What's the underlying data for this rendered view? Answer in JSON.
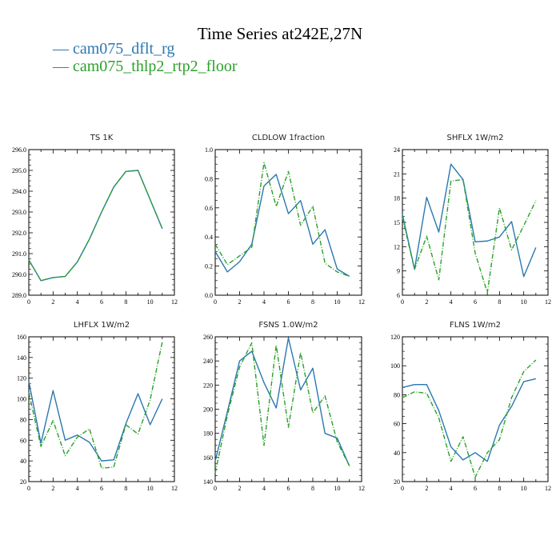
{
  "title": "Time Series at242E,27N",
  "legend": [
    {
      "label": "cam075_dflt_rg",
      "color": "#2a78b0"
    },
    {
      "label": "cam075_thlp2_rtp2_floor",
      "color": "#2ca02c"
    }
  ],
  "chart_data": [
    {
      "type": "line",
      "title": "TS   1K",
      "x": [
        0,
        1,
        2,
        3,
        4,
        5,
        6,
        7,
        8,
        9,
        10,
        11
      ],
      "xlim": [
        0,
        12
      ],
      "xticks": [
        "0",
        "2",
        "4",
        "6",
        "8",
        "10",
        "12"
      ],
      "ylim": [
        289,
        296
      ],
      "yticks": [
        "289.0",
        "290.0",
        "291.0",
        "292.0",
        "293.0",
        "294.0",
        "295.0",
        "296.0"
      ],
      "series": [
        {
          "name": "cam075_dflt_rg",
          "values": [
            290.7,
            289.7,
            289.85,
            289.9,
            290.6,
            291.7,
            293.0,
            294.2,
            294.95,
            295.0,
            293.6,
            292.2
          ]
        },
        {
          "name": "cam075_thlp2_rtp2_floor",
          "values": [
            290.7,
            289.7,
            289.85,
            289.9,
            290.6,
            291.7,
            293.0,
            294.2,
            294.95,
            295.0,
            293.6,
            292.2
          ]
        }
      ]
    },
    {
      "type": "line",
      "title": "CLDLOW   1fraction",
      "x": [
        0,
        1,
        2,
        3,
        4,
        5,
        6,
        7,
        8,
        9,
        10,
        11
      ],
      "xlim": [
        0,
        12
      ],
      "xticks": [
        "0",
        "2",
        "4",
        "6",
        "8",
        "10",
        "12"
      ],
      "ylim": [
        0,
        1
      ],
      "yticks": [
        "0.0",
        "0.2",
        "0.4",
        "0.6",
        "0.8",
        "1.0"
      ],
      "series": [
        {
          "name": "cam075_dflt_rg",
          "values": [
            0.3,
            0.16,
            0.23,
            0.35,
            0.75,
            0.83,
            0.56,
            0.65,
            0.35,
            0.45,
            0.18,
            0.13
          ]
        },
        {
          "name": "cam075_thlp2_rtp2_floor",
          "values": [
            0.35,
            0.21,
            0.27,
            0.33,
            0.91,
            0.61,
            0.85,
            0.48,
            0.61,
            0.22,
            0.16,
            0.13
          ]
        }
      ]
    },
    {
      "type": "line",
      "title": "SHFLX   1W/m2",
      "x": [
        0,
        1,
        2,
        3,
        4,
        5,
        6,
        7,
        8,
        9,
        10,
        11
      ],
      "xlim": [
        0,
        12
      ],
      "xticks": [
        "0",
        "2",
        "4",
        "6",
        "8",
        "10",
        "12"
      ],
      "ylim": [
        6,
        24
      ],
      "yticks": [
        "6",
        "9",
        "12",
        "15",
        "18",
        "21",
        "24"
      ],
      "series": [
        {
          "name": "cam075_dflt_rg",
          "values": [
            16.0,
            9.2,
            18.1,
            13.8,
            22.2,
            20.3,
            12.6,
            12.7,
            13.2,
            15.1,
            8.3,
            11.9
          ]
        },
        {
          "name": "cam075_thlp2_rtp2_floor",
          "values": [
            15.6,
            9.2,
            13.3,
            7.9,
            20.1,
            20.3,
            11.2,
            6.3,
            16.8,
            11.6,
            14.6,
            17.7
          ]
        }
      ]
    },
    {
      "type": "line",
      "title": "LHFLX   1W/m2",
      "x": [
        0,
        1,
        2,
        3,
        4,
        5,
        6,
        7,
        8,
        9,
        10,
        11
      ],
      "xlim": [
        0,
        12
      ],
      "xticks": [
        "0",
        "2",
        "4",
        "6",
        "8",
        "10",
        "12"
      ],
      "ylim": [
        20,
        160
      ],
      "yticks": [
        "20",
        "40",
        "60",
        "80",
        "100",
        "120",
        "140",
        "160"
      ],
      "series": [
        {
          "name": "cam075_dflt_rg",
          "values": [
            117,
            57,
            108,
            60,
            65,
            58,
            40,
            41,
            76,
            105,
            75,
            100
          ]
        },
        {
          "name": "cam075_thlp2_rtp2_floor",
          "values": [
            106,
            54,
            79,
            45,
            63,
            71,
            33,
            34,
            75,
            66,
            99,
            155
          ]
        }
      ]
    },
    {
      "type": "line",
      "title": "FSNS   1.0W/m2",
      "x": [
        0,
        1,
        2,
        3,
        4,
        5,
        6,
        7,
        8,
        9,
        10,
        11
      ],
      "xlim": [
        0,
        12
      ],
      "xticks": [
        "0",
        "2",
        "4",
        "6",
        "8",
        "10",
        "12"
      ],
      "ylim": [
        140,
        260
      ],
      "yticks": [
        "140",
        "160",
        "180",
        "200",
        "220",
        "240",
        "260"
      ],
      "series": [
        {
          "name": "cam075_dflt_rg",
          "values": [
            157,
            198,
            240,
            248,
            222,
            201,
            259,
            216,
            234,
            180,
            176,
            153
          ]
        },
        {
          "name": "cam075_thlp2_rtp2_floor",
          "values": [
            147,
            195,
            235,
            255,
            170,
            253,
            185,
            247,
            197,
            211,
            173,
            153
          ]
        }
      ]
    },
    {
      "type": "line",
      "title": "FLNS   1W/m2",
      "x": [
        0,
        1,
        2,
        3,
        4,
        5,
        6,
        7,
        8,
        9,
        10,
        11
      ],
      "xlim": [
        0,
        12
      ],
      "xticks": [
        "0",
        "2",
        "4",
        "6",
        "8",
        "10",
        "12"
      ],
      "ylim": [
        20,
        120
      ],
      "yticks": [
        "20",
        "40",
        "60",
        "80",
        "100",
        "120"
      ],
      "series": [
        {
          "name": "cam075_dflt_rg",
          "values": [
            85,
            87,
            87,
            69,
            44,
            35,
            40,
            34,
            59,
            72,
            89,
            91
          ]
        },
        {
          "name": "cam075_thlp2_rtp2_floor",
          "values": [
            78,
            82,
            81,
            64,
            34,
            51,
            23,
            40,
            49,
            78,
            96,
            104
          ]
        }
      ]
    }
  ]
}
